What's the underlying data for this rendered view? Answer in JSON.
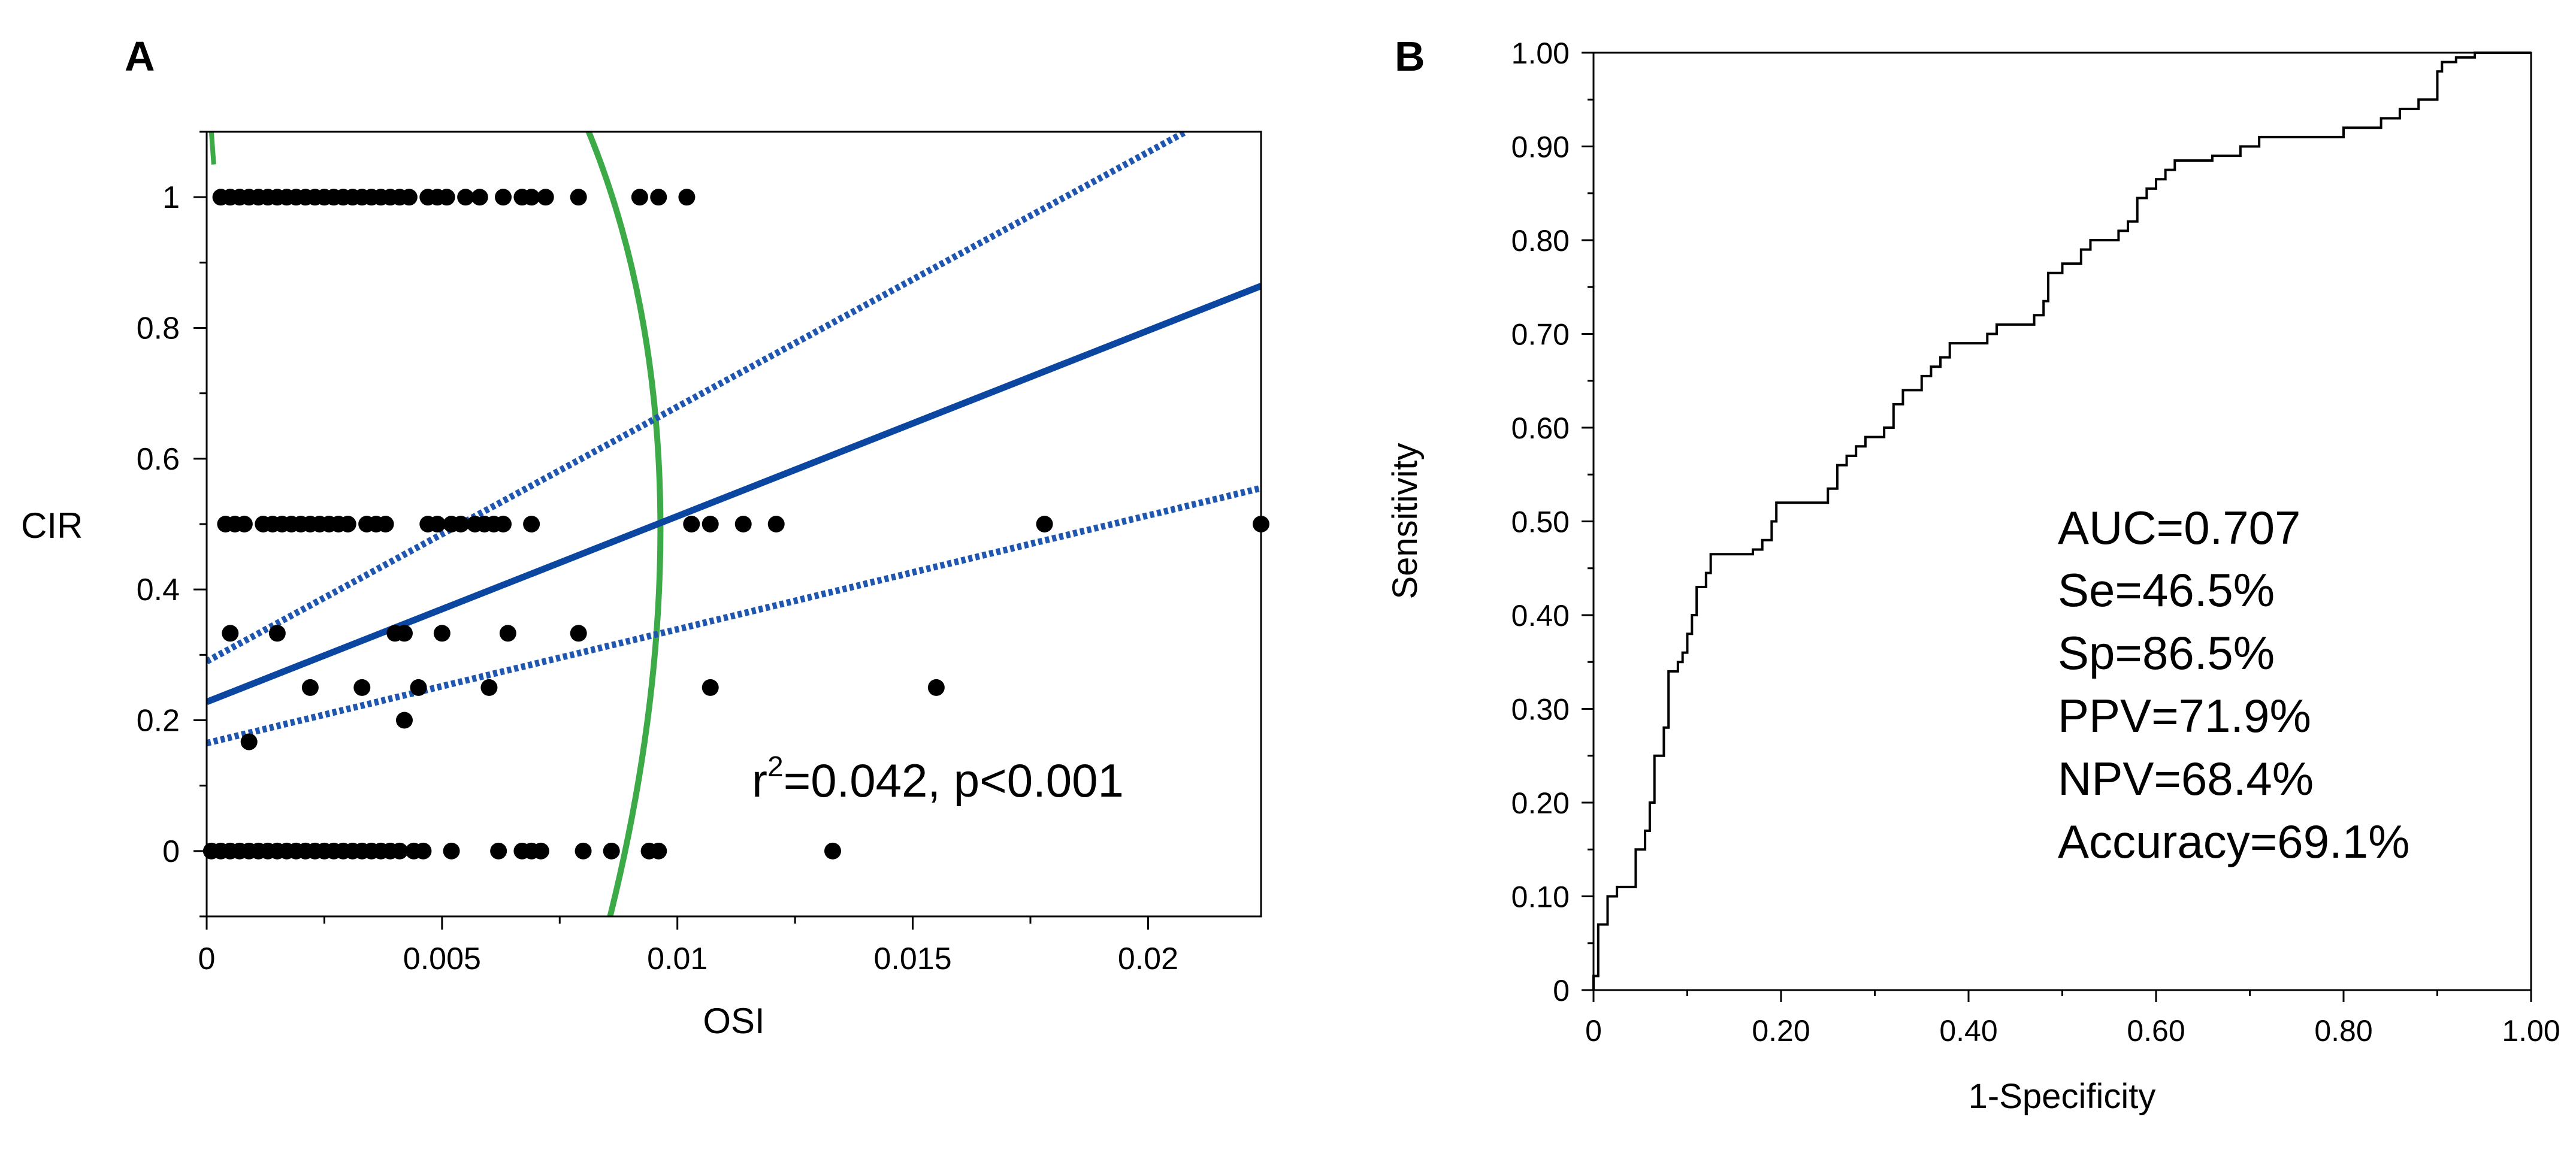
{
  "chart_data": [
    {
      "panel": "A",
      "type": "scatter",
      "xlabel": "OSI",
      "ylabel": "CIR",
      "xlim": [
        0,
        0.0224
      ],
      "ylim": [
        -0.1,
        1.1
      ],
      "xticks": [
        0,
        0.005,
        0.01,
        0.015,
        0.02
      ],
      "xtick_labels": [
        "0",
        "0.005",
        "0.01",
        "0.015",
        "0.02"
      ],
      "yticks": [
        0,
        0.2,
        0.4,
        0.6,
        0.8,
        1
      ],
      "ytick_labels": [
        "0",
        "0.2",
        "0.4",
        "0.6",
        "0.8",
        "1"
      ],
      "annotation_prefix": "r",
      "annotation_sup": "2",
      "annotation_rest": "=0.042, p<0.001",
      "points": [
        [
          0.0003,
          1
        ],
        [
          0.0005,
          1
        ],
        [
          0.0007,
          1
        ],
        [
          0.0009,
          1
        ],
        [
          0.0011,
          1
        ],
        [
          0.0013,
          1
        ],
        [
          0.0015,
          1
        ],
        [
          0.0017,
          1
        ],
        [
          0.0019,
          1
        ],
        [
          0.0021,
          1
        ],
        [
          0.0023,
          1
        ],
        [
          0.0025,
          1
        ],
        [
          0.0027,
          1
        ],
        [
          0.0029,
          1
        ],
        [
          0.0031,
          1
        ],
        [
          0.0033,
          1
        ],
        [
          0.0035,
          1
        ],
        [
          0.0037,
          1
        ],
        [
          0.0039,
          1
        ],
        [
          0.0041,
          1
        ],
        [
          0.0043,
          1
        ],
        [
          0.0047,
          1
        ],
        [
          0.0049,
          1
        ],
        [
          0.0051,
          1
        ],
        [
          0.0055,
          1
        ],
        [
          0.0058,
          1
        ],
        [
          0.0063,
          1
        ],
        [
          0.0067,
          1
        ],
        [
          0.0069,
          1
        ],
        [
          0.0072,
          1
        ],
        [
          0.0079,
          1
        ],
        [
          0.0092,
          1
        ],
        [
          0.0096,
          1
        ],
        [
          0.0102,
          1
        ],
        [
          0.0004,
          0.5
        ],
        [
          0.0006,
          0.5
        ],
        [
          0.0008,
          0.5
        ],
        [
          0.0012,
          0.5
        ],
        [
          0.0014,
          0.5
        ],
        [
          0.0016,
          0.5
        ],
        [
          0.0018,
          0.5
        ],
        [
          0.002,
          0.5
        ],
        [
          0.0022,
          0.5
        ],
        [
          0.0024,
          0.5
        ],
        [
          0.0026,
          0.5
        ],
        [
          0.0028,
          0.5
        ],
        [
          0.003,
          0.5
        ],
        [
          0.0034,
          0.5
        ],
        [
          0.0036,
          0.5
        ],
        [
          0.0038,
          0.5
        ],
        [
          0.0047,
          0.5
        ],
        [
          0.0049,
          0.5
        ],
        [
          0.0052,
          0.5
        ],
        [
          0.0054,
          0.5
        ],
        [
          0.0057,
          0.5
        ],
        [
          0.0059,
          0.5
        ],
        [
          0.0061,
          0.5
        ],
        [
          0.0063,
          0.5
        ],
        [
          0.0069,
          0.5
        ],
        [
          0.0103,
          0.5
        ],
        [
          0.0107,
          0.5
        ],
        [
          0.0114,
          0.5
        ],
        [
          0.0121,
          0.5
        ],
        [
          0.0178,
          0.5
        ],
        [
          0.0224,
          0.5
        ],
        [
          0.0005,
          0.333
        ],
        [
          0.0015,
          0.333
        ],
        [
          0.004,
          0.333
        ],
        [
          0.0042,
          0.333
        ],
        [
          0.005,
          0.333
        ],
        [
          0.0064,
          0.333
        ],
        [
          0.0079,
          0.333
        ],
        [
          0.0022,
          0.25
        ],
        [
          0.0033,
          0.25
        ],
        [
          0.0045,
          0.25
        ],
        [
          0.006,
          0.25
        ],
        [
          0.0107,
          0.25
        ],
        [
          0.0155,
          0.25
        ],
        [
          0.0042,
          0.2
        ],
        [
          0.0009,
          0.167
        ],
        [
          0.0001,
          0
        ],
        [
          0.0003,
          0
        ],
        [
          0.0005,
          0
        ],
        [
          0.0007,
          0
        ],
        [
          0.0009,
          0
        ],
        [
          0.0011,
          0
        ],
        [
          0.0013,
          0
        ],
        [
          0.0015,
          0
        ],
        [
          0.0017,
          0
        ],
        [
          0.0019,
          0
        ],
        [
          0.0021,
          0
        ],
        [
          0.0023,
          0
        ],
        [
          0.0025,
          0
        ],
        [
          0.0027,
          0
        ],
        [
          0.0029,
          0
        ],
        [
          0.0031,
          0
        ],
        [
          0.0033,
          0
        ],
        [
          0.0035,
          0
        ],
        [
          0.0037,
          0
        ],
        [
          0.0039,
          0
        ],
        [
          0.0041,
          0
        ],
        [
          0.0044,
          0
        ],
        [
          0.0046,
          0
        ],
        [
          0.0052,
          0
        ],
        [
          0.0062,
          0
        ],
        [
          0.0067,
          0
        ],
        [
          0.0069,
          0
        ],
        [
          0.0071,
          0
        ],
        [
          0.008,
          0
        ],
        [
          0.0086,
          0
        ],
        [
          0.0094,
          0
        ],
        [
          0.0096,
          0
        ],
        [
          0.0133,
          0
        ]
      ],
      "fit_line": {
        "intercept": 0.228,
        "slope": 28.4
      },
      "ci_upper": [
        [
          0,
          0.29
        ],
        [
          0.0208,
          1.1
        ]
      ],
      "ci_lower": [
        [
          0,
          0.165
        ],
        [
          0.0224,
          0.555
        ]
      ],
      "threshold_curve": [
        [
          5e-05,
          1.1
        ],
        [
          0.008,
          1.1
        ],
        [
          0.0088,
          1.0
        ],
        [
          0.0094,
          0.85
        ],
        [
          0.0098,
          0.68
        ],
        [
          0.0099,
          0.5
        ],
        [
          0.0097,
          0.35
        ],
        [
          0.0094,
          0.2
        ],
        [
          0.009,
          0.05
        ],
        [
          0.0085,
          -0.1
        ]
      ],
      "colors": {
        "points": "#000000",
        "fit": "#0b47a1",
        "ci": "#1f57b0",
        "threshold": "#3daa48"
      }
    },
    {
      "panel": "B",
      "type": "line",
      "xlabel": "1-Specificity",
      "ylabel": "Sensitivity",
      "xlim": [
        0,
        1
      ],
      "ylim": [
        0,
        1
      ],
      "xticks": [
        0,
        0.2,
        0.4,
        0.6,
        0.8,
        1.0
      ],
      "xtick_labels": [
        "0",
        "0.20",
        "0.40",
        "0.60",
        "0.80",
        "1.00"
      ],
      "yticks": [
        0,
        0.1,
        0.2,
        0.3,
        0.4,
        0.5,
        0.6,
        0.7,
        0.8,
        0.9,
        1.0
      ],
      "ytick_labels": [
        "0",
        "0.10",
        "0.20",
        "0.30",
        "0.40",
        "0.50",
        "0.60",
        "0.70",
        "0.80",
        "0.90",
        "1.00"
      ],
      "roc": [
        [
          0,
          0
        ],
        [
          0,
          0.015
        ],
        [
          0.005,
          0.015
        ],
        [
          0.005,
          0.07
        ],
        [
          0.015,
          0.07
        ],
        [
          0.015,
          0.1
        ],
        [
          0.025,
          0.1
        ],
        [
          0.025,
          0.11
        ],
        [
          0.045,
          0.11
        ],
        [
          0.045,
          0.15
        ],
        [
          0.055,
          0.15
        ],
        [
          0.055,
          0.17
        ],
        [
          0.06,
          0.17
        ],
        [
          0.06,
          0.2
        ],
        [
          0.065,
          0.2
        ],
        [
          0.065,
          0.25
        ],
        [
          0.075,
          0.25
        ],
        [
          0.075,
          0.28
        ],
        [
          0.08,
          0.28
        ],
        [
          0.08,
          0.34
        ],
        [
          0.09,
          0.34
        ],
        [
          0.09,
          0.35
        ],
        [
          0.095,
          0.35
        ],
        [
          0.095,
          0.36
        ],
        [
          0.1,
          0.36
        ],
        [
          0.1,
          0.38
        ],
        [
          0.105,
          0.38
        ],
        [
          0.105,
          0.4
        ],
        [
          0.11,
          0.4
        ],
        [
          0.11,
          0.43
        ],
        [
          0.12,
          0.43
        ],
        [
          0.12,
          0.445
        ],
        [
          0.125,
          0.445
        ],
        [
          0.125,
          0.465
        ],
        [
          0.17,
          0.465
        ],
        [
          0.17,
          0.47
        ],
        [
          0.18,
          0.47
        ],
        [
          0.18,
          0.48
        ],
        [
          0.19,
          0.48
        ],
        [
          0.19,
          0.5
        ],
        [
          0.195,
          0.5
        ],
        [
          0.195,
          0.52
        ],
        [
          0.25,
          0.52
        ],
        [
          0.25,
          0.535
        ],
        [
          0.26,
          0.535
        ],
        [
          0.26,
          0.56
        ],
        [
          0.27,
          0.56
        ],
        [
          0.27,
          0.57
        ],
        [
          0.28,
          0.57
        ],
        [
          0.28,
          0.58
        ],
        [
          0.29,
          0.58
        ],
        [
          0.29,
          0.59
        ],
        [
          0.31,
          0.59
        ],
        [
          0.31,
          0.6
        ],
        [
          0.32,
          0.6
        ],
        [
          0.32,
          0.625
        ],
        [
          0.33,
          0.625
        ],
        [
          0.33,
          0.64
        ],
        [
          0.35,
          0.64
        ],
        [
          0.35,
          0.655
        ],
        [
          0.36,
          0.655
        ],
        [
          0.36,
          0.665
        ],
        [
          0.37,
          0.665
        ],
        [
          0.37,
          0.675
        ],
        [
          0.38,
          0.675
        ],
        [
          0.38,
          0.69
        ],
        [
          0.42,
          0.69
        ],
        [
          0.42,
          0.7
        ],
        [
          0.43,
          0.7
        ],
        [
          0.43,
          0.71
        ],
        [
          0.47,
          0.71
        ],
        [
          0.47,
          0.72
        ],
        [
          0.48,
          0.72
        ],
        [
          0.48,
          0.735
        ],
        [
          0.485,
          0.735
        ],
        [
          0.485,
          0.765
        ],
        [
          0.5,
          0.765
        ],
        [
          0.5,
          0.775
        ],
        [
          0.52,
          0.775
        ],
        [
          0.52,
          0.79
        ],
        [
          0.53,
          0.79
        ],
        [
          0.53,
          0.8
        ],
        [
          0.56,
          0.8
        ],
        [
          0.56,
          0.81
        ],
        [
          0.57,
          0.81
        ],
        [
          0.57,
          0.82
        ],
        [
          0.58,
          0.82
        ],
        [
          0.58,
          0.845
        ],
        [
          0.59,
          0.845
        ],
        [
          0.59,
          0.855
        ],
        [
          0.6,
          0.855
        ],
        [
          0.6,
          0.865
        ],
        [
          0.61,
          0.865
        ],
        [
          0.61,
          0.875
        ],
        [
          0.62,
          0.875
        ],
        [
          0.62,
          0.885
        ],
        [
          0.66,
          0.885
        ],
        [
          0.66,
          0.89
        ],
        [
          0.69,
          0.89
        ],
        [
          0.69,
          0.9
        ],
        [
          0.71,
          0.9
        ],
        [
          0.71,
          0.91
        ],
        [
          0.8,
          0.91
        ],
        [
          0.8,
          0.92
        ],
        [
          0.84,
          0.92
        ],
        [
          0.84,
          0.93
        ],
        [
          0.86,
          0.93
        ],
        [
          0.86,
          0.94
        ],
        [
          0.88,
          0.94
        ],
        [
          0.88,
          0.95
        ],
        [
          0.9,
          0.95
        ],
        [
          0.9,
          0.98
        ],
        [
          0.905,
          0.98
        ],
        [
          0.905,
          0.99
        ],
        [
          0.92,
          0.99
        ],
        [
          0.92,
          0.995
        ],
        [
          0.94,
          0.995
        ],
        [
          0.94,
          1.0
        ],
        [
          1.0,
          1.0
        ]
      ],
      "stats": [
        "AUC=0.707",
        "Se=46.5%",
        "Sp=86.5%",
        "PPV=71.9%",
        "NPV=68.4%",
        "Accuracy=69.1%"
      ],
      "colors": {
        "line": "#000000"
      }
    }
  ]
}
